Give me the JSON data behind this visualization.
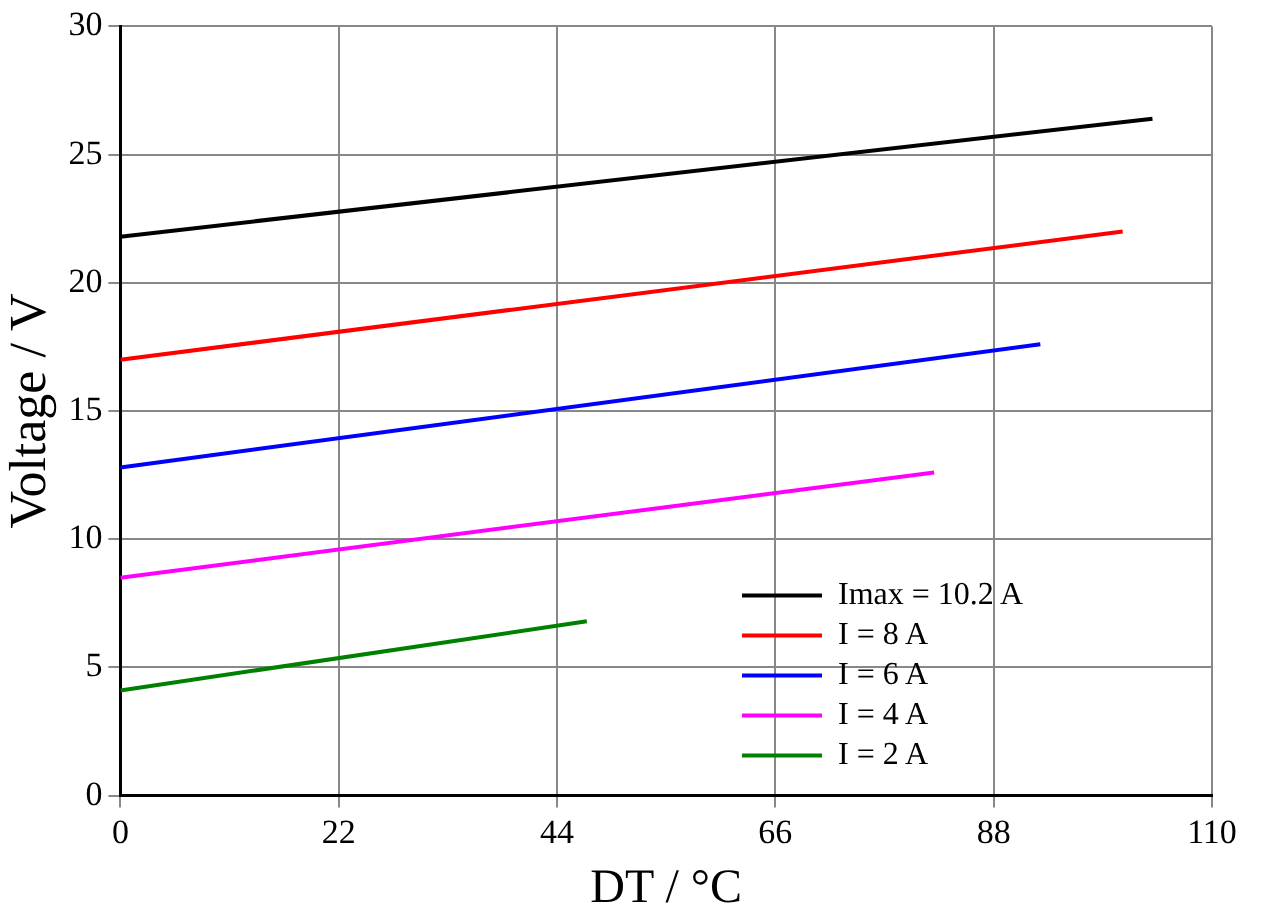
{
  "chart_data": {
    "type": "line",
    "xlabel": "DT / °C",
    "ylabel": "Voltage / V",
    "xlim": [
      0,
      110
    ],
    "xticks": [
      0,
      22,
      44,
      66,
      88,
      110
    ],
    "ylim": [
      0,
      30
    ],
    "yticks": [
      0,
      5,
      10,
      15,
      20,
      25,
      30
    ],
    "grid": true,
    "legend": "bottom right",
    "marker": "none",
    "line_style": "solid",
    "series": [
      {
        "name": "Imax = 10.2 A",
        "color": "#000000",
        "x": [
          0,
          104
        ],
        "values": [
          21.8,
          26.4
        ]
      },
      {
        "name": "I = 8 A",
        "color": "#ff0000",
        "x": [
          0,
          101
        ],
        "values": [
          17.0,
          22.0
        ]
      },
      {
        "name": "I = 6 A",
        "color": "#0000ff",
        "x": [
          0,
          92.7
        ],
        "values": [
          12.8,
          17.6
        ]
      },
      {
        "name": "I = 4 A",
        "color": "#ff00ff",
        "x": [
          0,
          82
        ],
        "values": [
          8.5,
          12.6
        ]
      },
      {
        "name": "I = 2 A",
        "color": "#008000",
        "x": [
          0,
          47
        ],
        "values": [
          4.1,
          6.8
        ]
      }
    ]
  }
}
